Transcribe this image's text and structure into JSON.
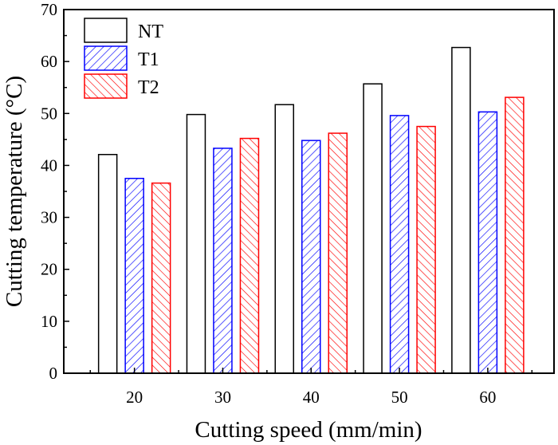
{
  "chart_data": {
    "type": "bar",
    "categories": [
      "20",
      "30",
      "40",
      "50",
      "60"
    ],
    "x_values": [
      20,
      30,
      40,
      50,
      60
    ],
    "series": [
      {
        "name": "NT",
        "values": [
          42.1,
          49.8,
          51.7,
          55.7,
          62.7
        ],
        "color": "#000000",
        "fill": "none"
      },
      {
        "name": "T1",
        "values": [
          37.5,
          43.3,
          44.8,
          49.6,
          50.3
        ],
        "color": "#0000ff",
        "fill": "hatch-backslash"
      },
      {
        "name": "T2",
        "values": [
          36.6,
          45.2,
          46.2,
          47.5,
          53.1
        ],
        "color": "#ff0000",
        "fill": "hatch-slash"
      }
    ],
    "xlabel": "Cutting speed (mm/min)",
    "ylabel": "Cutting temperature (°C)",
    "xlim": [
      12,
      67.5
    ],
    "ylim": [
      0,
      70
    ],
    "yticks": [
      "0",
      "10",
      "20",
      "30",
      "40",
      "50",
      "60",
      "70"
    ],
    "grid": false,
    "legend_position": "top-left"
  }
}
